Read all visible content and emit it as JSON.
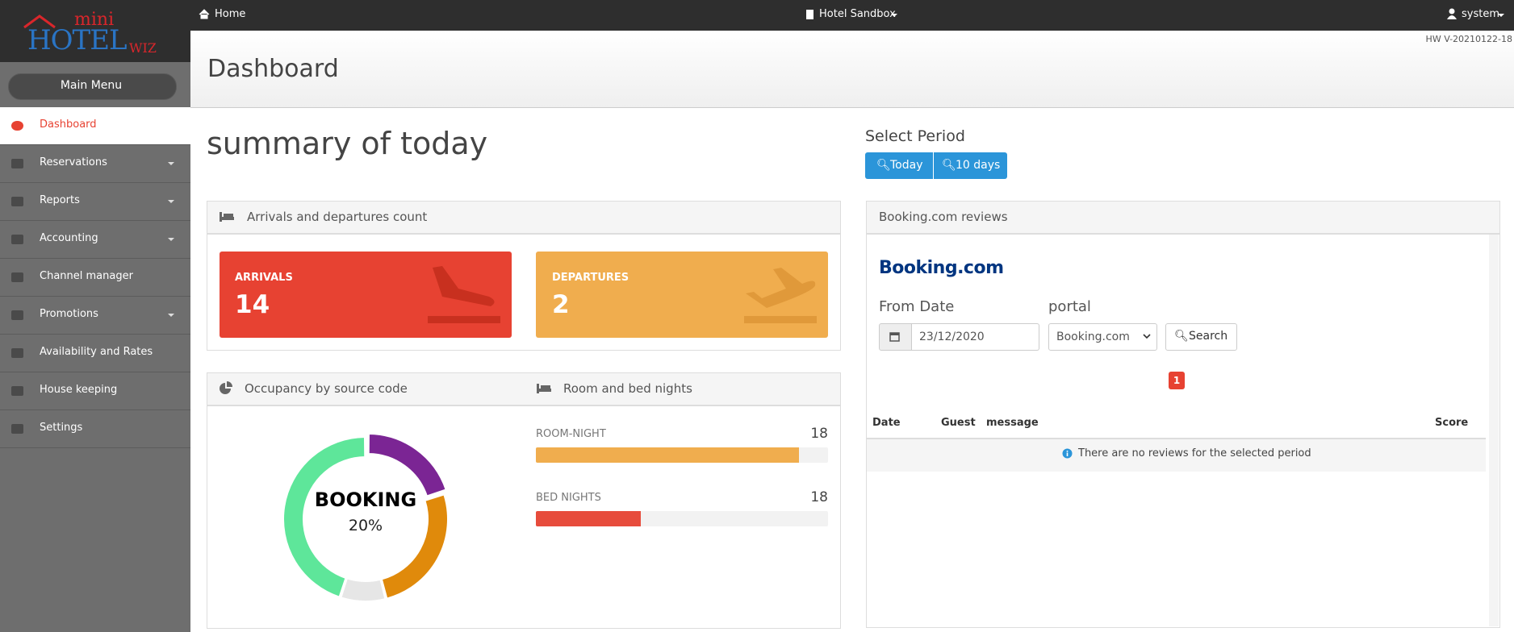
{
  "top_bar": {
    "home": "Home",
    "hotel": "Hotel Sandbox",
    "user": "system"
  },
  "logo": {
    "mini": "mini",
    "hotel": "HOTEL",
    "wiz": "WIZ"
  },
  "sidebar": {
    "main_menu": "Main Menu",
    "items": [
      "Dashboard",
      "Reservations",
      "Reports",
      "Accounting",
      "Channel manager",
      "Promotions",
      "Availability and Rates",
      "House keeping",
      "Settings"
    ]
  },
  "header": {
    "title": "Dashboard",
    "version": "HW V-20210122-18"
  },
  "summary": {
    "title": "summary of today"
  },
  "period": {
    "label": "Select Period",
    "buttons": [
      "Today",
      "10 days"
    ]
  },
  "arrivals_panel": {
    "title": "Arrivals and departures count",
    "arrivals": {
      "label": "ARRIVALS",
      "value": 14
    },
    "departures": {
      "label": "DEPARTURES",
      "value": 2
    }
  },
  "occupancy_panel": {
    "title": "Occupancy by source code",
    "center_label": "BOOKING",
    "center_value": "20%",
    "segments": [
      {
        "value": 20,
        "color": "#7b2594"
      },
      {
        "value": 26,
        "color": "#e08a0b"
      },
      {
        "value": 9,
        "color": "#e6e6e6"
      },
      {
        "value": 45,
        "color": "#5ee69a"
      }
    ]
  },
  "nights_panel": {
    "title": "Room and bed nights",
    "bars": [
      {
        "label": "ROOM-NIGHT",
        "value": 18,
        "fill": 90,
        "color": "#f0ad4e"
      },
      {
        "label": "BED NIGHTS",
        "value": 18,
        "fill": 36,
        "color": "#e74c3c"
      }
    ]
  },
  "reviews_panel": {
    "title": "Booking.com reviews",
    "logo": "Booking.com",
    "from_date_label": "From Date",
    "from_date": "23/12/2020",
    "portal_label": "portal",
    "portal": "Booking.com",
    "search": "Search",
    "page": 1,
    "columns": [
      "Date",
      "Guest",
      "message",
      "Score"
    ],
    "empty": "There are no reviews for the selected period"
  }
}
